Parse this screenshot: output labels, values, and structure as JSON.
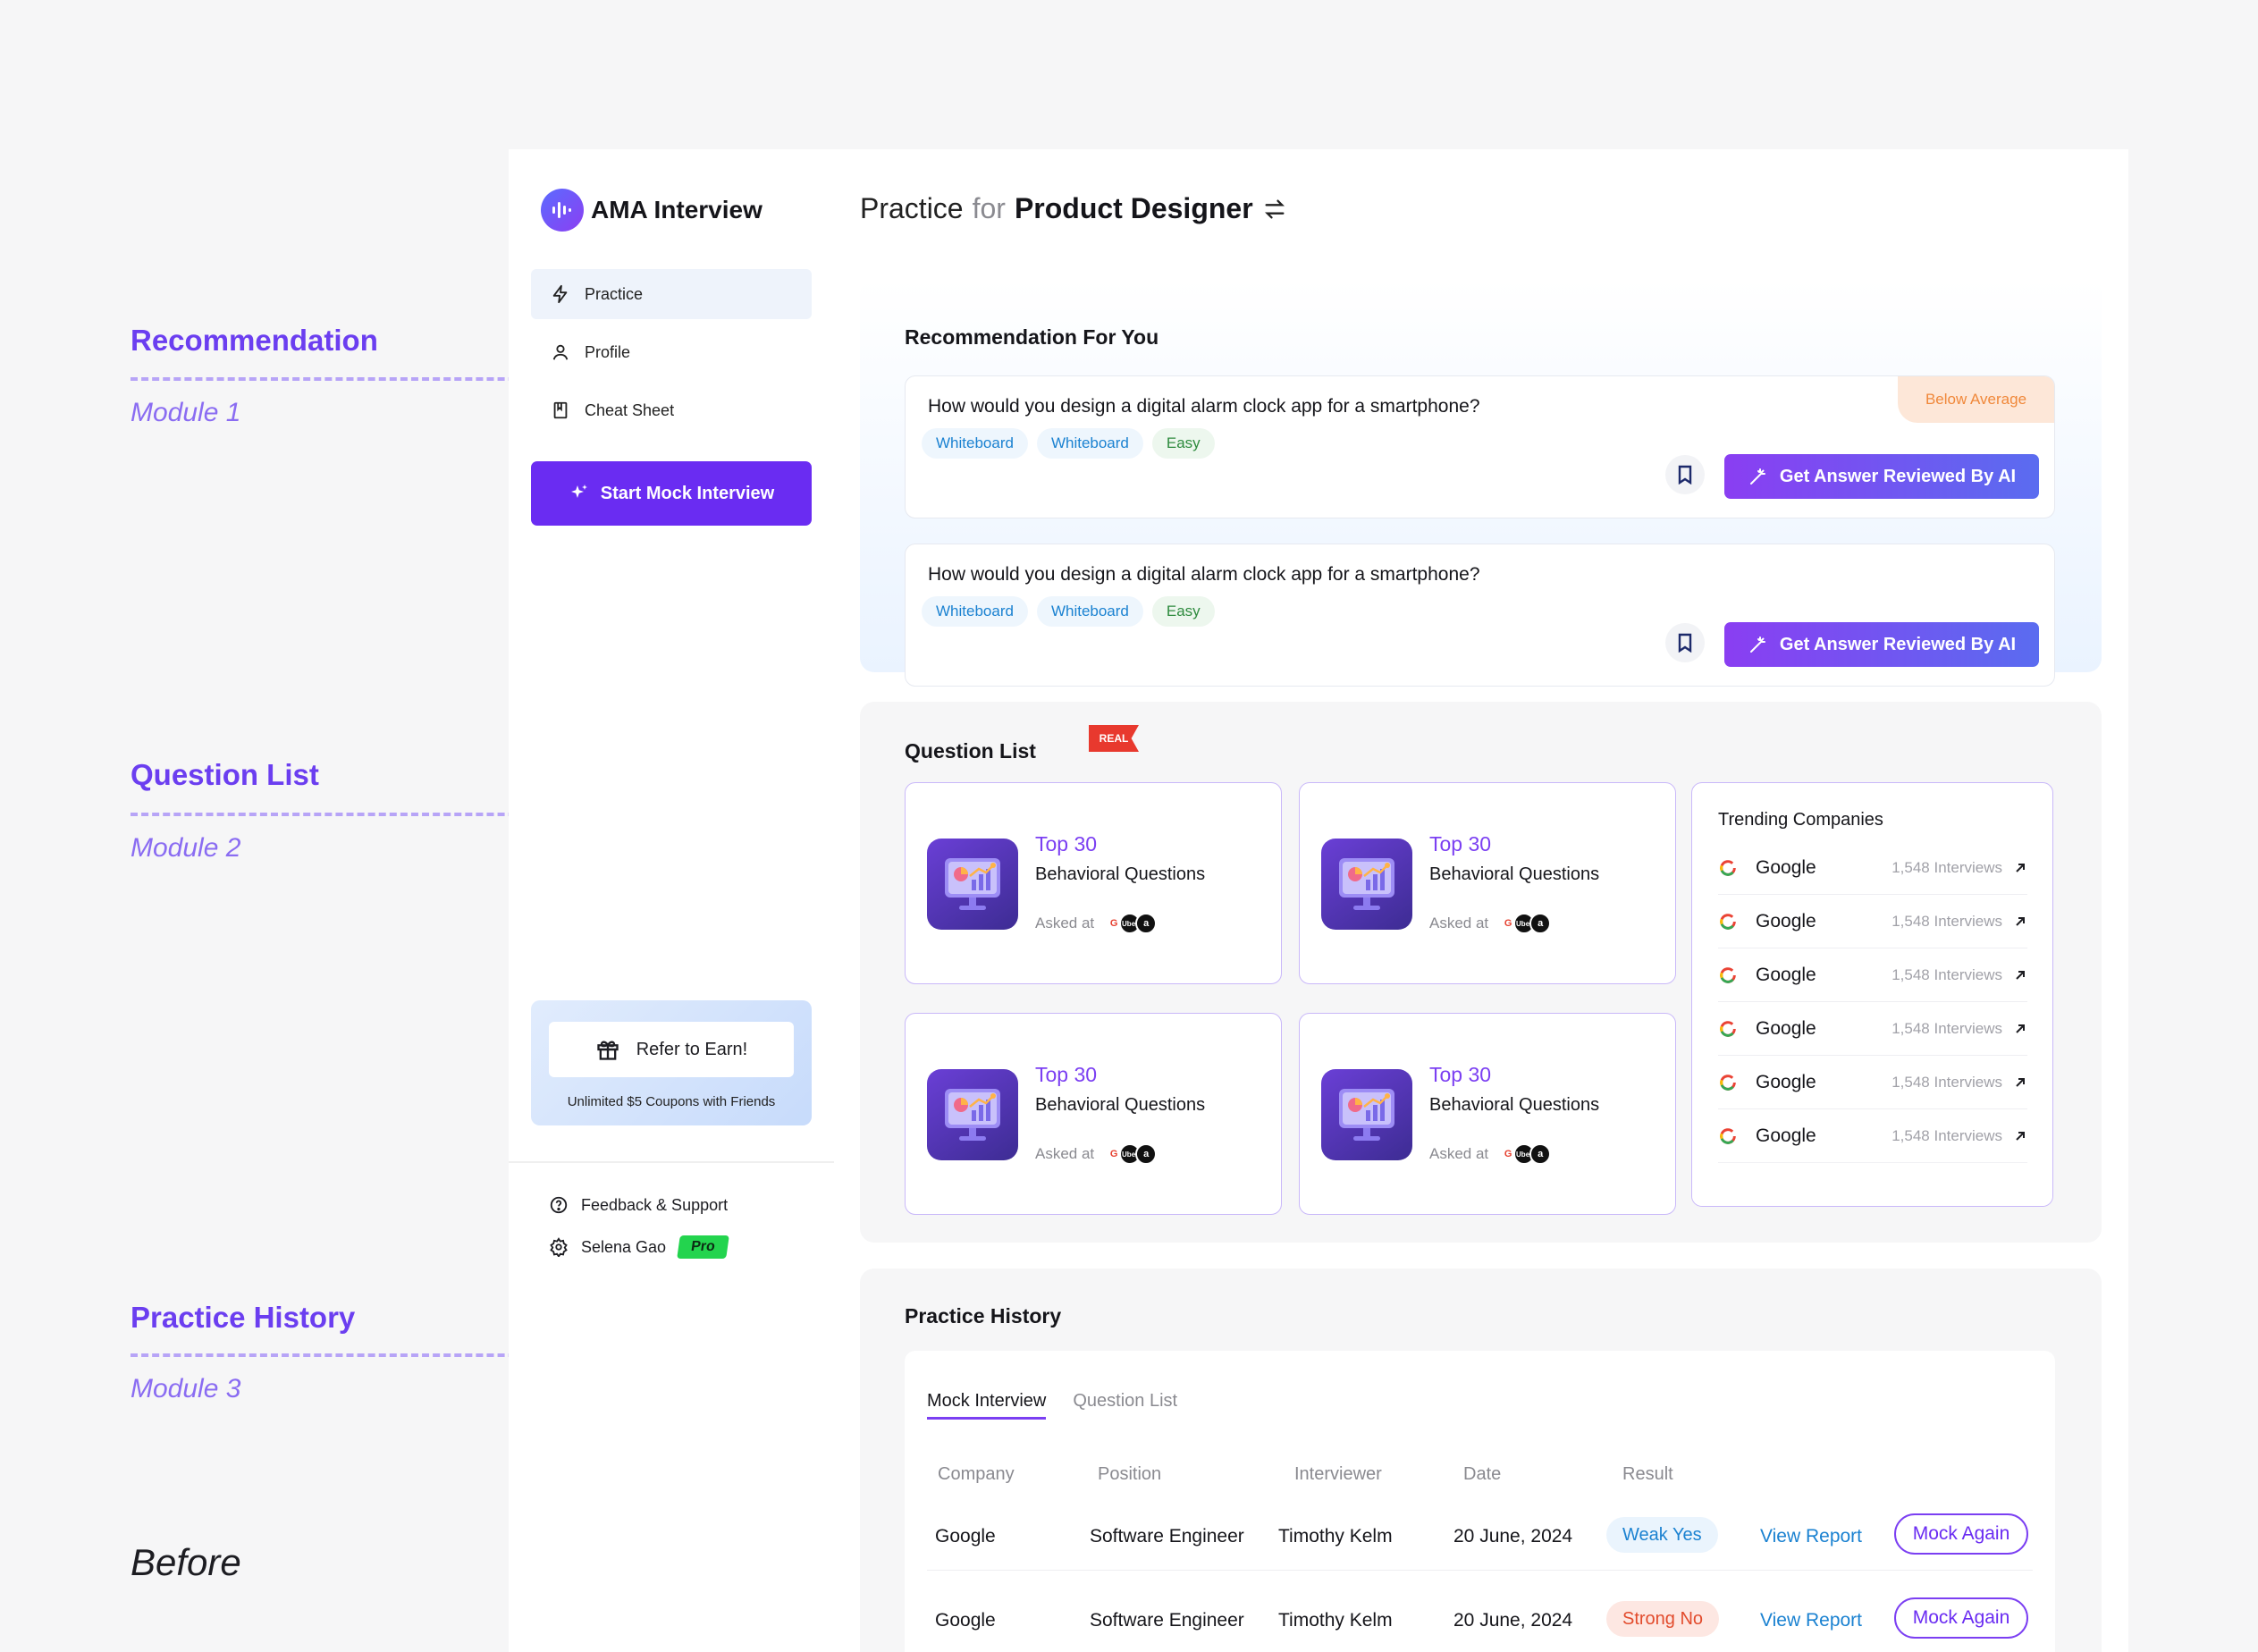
{
  "annotations": {
    "recommendation": {
      "title": "Recommendation",
      "module": "Module 1"
    },
    "question_list": {
      "title": "Question List",
      "module": "Module 2"
    },
    "practice_history": {
      "title": "Practice History",
      "module": "Module 3"
    },
    "before_label": "Before"
  },
  "brand": {
    "name": "AMA Interview",
    "logo_color": "#6a4cf2"
  },
  "sidebar": {
    "items": [
      {
        "label": "Practice",
        "icon": "bolt-icon",
        "active": true
      },
      {
        "label": "Profile",
        "icon": "user-icon",
        "active": false
      },
      {
        "label": "Cheat Sheet",
        "icon": "book-icon",
        "active": false
      }
    ],
    "start_button": "Start Mock Interview",
    "refer": {
      "title": "Refer to Earn!",
      "subtitle": "Unlimited $5 Coupons with Friends"
    },
    "footer": {
      "feedback": "Feedback & Support",
      "user_name": "Selena Gao",
      "plan_badge": "Pro"
    }
  },
  "header": {
    "prefix": "Practice",
    "connector": "for",
    "role": "Product Designer"
  },
  "recommendation": {
    "title": "Recommendation For You",
    "cards": [
      {
        "question": "How would you design a digital alarm clock app for a smartphone?",
        "tags": [
          {
            "label": "Whiteboard",
            "kind": "blue"
          },
          {
            "label": "Whiteboard",
            "kind": "blue"
          },
          {
            "label": "Easy",
            "kind": "green"
          }
        ],
        "badge": "Below Average",
        "action": "Get Answer Reviewed By AI"
      },
      {
        "question": "How would you design a digital alarm clock app for a smartphone?",
        "tags": [
          {
            "label": "Whiteboard",
            "kind": "blue"
          },
          {
            "label": "Whiteboard",
            "kind": "blue"
          },
          {
            "label": "Easy",
            "kind": "green"
          }
        ],
        "badge": "",
        "action": "Get Answer Reviewed By AI"
      }
    ]
  },
  "question_list": {
    "title": "Question List",
    "badge": "REAL",
    "cards": [
      {
        "top": "Top 30",
        "name": "Behavioral Questions",
        "asked": "Asked at"
      },
      {
        "top": "Top 30",
        "name": "Behavioral Questions",
        "asked": "Asked at"
      },
      {
        "top": "Top 30",
        "name": "Behavioral Questions",
        "asked": "Asked at"
      },
      {
        "top": "Top 30",
        "name": "Behavioral Questions",
        "asked": "Asked at"
      }
    ],
    "logo_labels": {
      "google": "G",
      "uber": "Uber",
      "amazon": "a"
    },
    "trending": {
      "title": "Trending Companies",
      "rows": [
        {
          "name": "Google",
          "count": "1,548 Interviews"
        },
        {
          "name": "Google",
          "count": "1,548 Interviews"
        },
        {
          "name": "Google",
          "count": "1,548 Interviews"
        },
        {
          "name": "Google",
          "count": "1,548 Interviews"
        },
        {
          "name": "Google",
          "count": "1,548 Interviews"
        },
        {
          "name": "Google",
          "count": "1,548 Interviews"
        }
      ]
    }
  },
  "practice_history": {
    "title": "Practice History",
    "tabs": [
      {
        "label": "Mock Interview",
        "active": true
      },
      {
        "label": "Question List",
        "active": false
      }
    ],
    "columns": [
      "Company",
      "Position",
      "Interviewer",
      "Date",
      "Result"
    ],
    "rows": [
      {
        "company": "Google",
        "position": "Software Engineer",
        "interviewer": "Timothy Kelm",
        "date": "20 June, 2024",
        "result": "Weak Yes",
        "result_kind": "weak",
        "view": "View Report",
        "mock": "Mock Again"
      },
      {
        "company": "Google",
        "position": "Software Engineer",
        "interviewer": "Timothy Kelm",
        "date": "20 June, 2024",
        "result": "Strong No",
        "result_kind": "strong",
        "view": "View Report",
        "mock": "Mock Again"
      }
    ]
  }
}
